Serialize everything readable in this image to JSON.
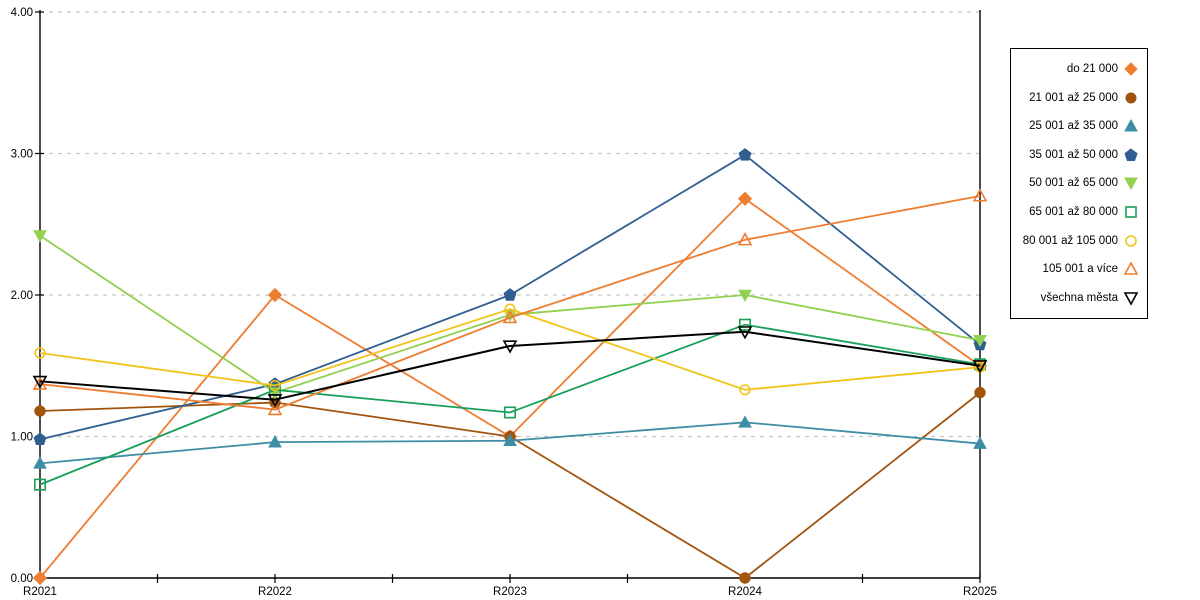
{
  "chart_data": {
    "type": "line",
    "title": "",
    "xlabel": "",
    "ylabel": "",
    "categories": [
      "R2021",
      "R2022",
      "R2023",
      "R2024",
      "R2025"
    ],
    "ylim": [
      0,
      4
    ],
    "ytick_labels": [
      "0.00",
      "1.00",
      "2.00",
      "3.00",
      "4.00"
    ],
    "grid": "horizontal-dashed",
    "legend_position": "right-outside-boxed",
    "series": [
      {
        "name": "do 21 000",
        "color": "#ED7D31",
        "marker": "diamond",
        "marker_fill": "filled",
        "values": [
          0.0,
          2.0,
          1.0,
          2.68,
          1.5
        ]
      },
      {
        "name": "21 001 až 25 000",
        "color": "#A2540F",
        "marker": "circle",
        "marker_fill": "filled",
        "values": [
          1.18,
          1.24,
          1.0,
          0.0,
          1.31
        ]
      },
      {
        "name": "25 001 až 35 000",
        "color": "#3E8DA5",
        "marker": "triangle-up",
        "marker_fill": "filled",
        "values": [
          0.81,
          0.96,
          0.97,
          1.1,
          0.95
        ]
      },
      {
        "name": "35 001 až 50 000",
        "color": "#2F5E90",
        "marker": "pentagon",
        "marker_fill": "filled",
        "values": [
          0.98,
          1.37,
          2.0,
          2.99,
          1.65
        ]
      },
      {
        "name": "50 001 až 65 000",
        "color": "#92D050",
        "marker": "triangle-down",
        "marker_fill": "filled",
        "values": [
          2.42,
          1.31,
          1.86,
          2.0,
          1.68
        ]
      },
      {
        "name": "65 001 až 80 000",
        "color": "#18A05A",
        "marker": "square",
        "marker_fill": "open",
        "values": [
          0.66,
          1.33,
          1.17,
          1.79,
          1.51
        ]
      },
      {
        "name": "80 001 až 105 000",
        "color": "#F2C319",
        "marker": "circle",
        "marker_fill": "open",
        "values": [
          1.59,
          1.36,
          1.9,
          1.33,
          1.49
        ]
      },
      {
        "name": "105 001 a více",
        "color": "#ED7D31",
        "marker": "triangle-up",
        "marker_fill": "open",
        "values": [
          1.37,
          1.19,
          1.84,
          2.39,
          2.7
        ]
      },
      {
        "name": "všechna města",
        "color": "#000000",
        "marker": "triangle-down",
        "marker_fill": "open",
        "values": [
          1.39,
          1.26,
          1.64,
          1.74,
          1.5
        ]
      }
    ],
    "colors": {
      "axis": "#000000",
      "gridline": "#C6C6C6",
      "background": "#FFFFFF",
      "tick_label": "#000000"
    }
  }
}
